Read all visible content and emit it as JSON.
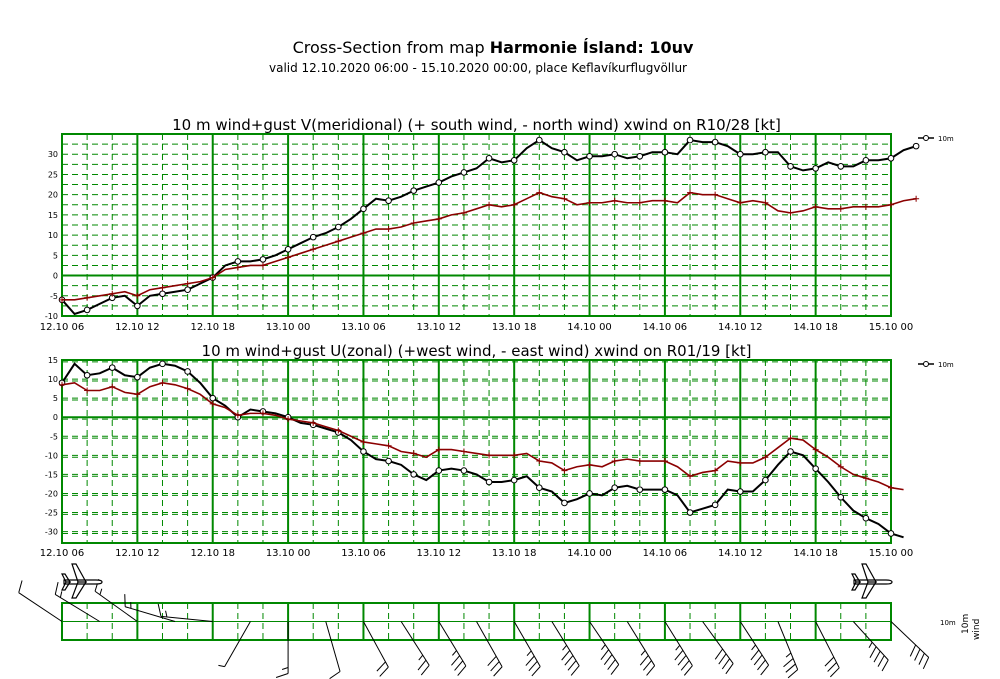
{
  "header": {
    "title_prefix": "Cross-Section from map ",
    "title_map": "Harmonie Ísland: 10uv",
    "subtitle": "valid 12.10.2020 06:00 - 15.10.2020 00:00, place Keflavíkurflugvöllur"
  },
  "colors": {
    "grid": "#008800",
    "wind": "#000000",
    "gust": "#8b0000"
  },
  "chart_data": [
    {
      "type": "line",
      "title": "10 m wind+gust V(meridional) (+ south wind, - north wind) xwind on R10/28 [kt]",
      "x_tick_labels": [
        "12.10 06",
        "12.10 12",
        "12.10 18",
        "13.10 00",
        "13.10 06",
        "13.10 12",
        "13.10 18",
        "14.10 00",
        "14.10 06",
        "14.10 12",
        "14.10 18",
        "15.10 00"
      ],
      "x_range_hours": [
        0,
        66
      ],
      "step_hours": 1,
      "ylim": [
        -10,
        35
      ],
      "y_ticks": [
        -10,
        -5,
        0,
        5,
        10,
        15,
        20,
        25,
        30
      ],
      "legend": {
        "label": "10m",
        "position": "right"
      },
      "series": [
        {
          "name": "wind",
          "values": [
            -6,
            -9.5,
            -8.5,
            -7,
            -5.5,
            -5,
            -7.5,
            -5,
            -4.5,
            -4,
            -3.5,
            -2,
            -0.5,
            2.5,
            3.5,
            3.5,
            4,
            5,
            6.5,
            8,
            9.5,
            10.5,
            12,
            14,
            16.5,
            19,
            18.5,
            19.5,
            21,
            22,
            23,
            24.5,
            25.5,
            26.5,
            29,
            28,
            28.5,
            31.5,
            33.5,
            31.5,
            30.5,
            28.5,
            29.5,
            29.5,
            30,
            29,
            29.5,
            30.5,
            30.5,
            30,
            33.5,
            33,
            33,
            32,
            30,
            30,
            30.5,
            30.5,
            27,
            26,
            26.5,
            28,
            27,
            27,
            28.5,
            28.5,
            29,
            31,
            32
          ]
        },
        {
          "name": "gust",
          "values": [
            -6,
            -6,
            -5.5,
            -5,
            -4.5,
            -4,
            -5,
            -3.5,
            -3,
            -2.5,
            -2,
            -1.5,
            -0.5,
            1.5,
            2,
            2.5,
            2.5,
            3.5,
            4.5,
            5.5,
            6.5,
            7.5,
            8.5,
            9.5,
            10.5,
            11.5,
            11.5,
            12,
            13,
            13.5,
            14,
            15,
            15.5,
            16.5,
            17.5,
            17,
            17.5,
            19,
            20.5,
            19.5,
            19,
            17.5,
            18,
            18,
            18.5,
            18,
            18,
            18.5,
            18.5,
            18,
            20.5,
            20,
            20,
            19,
            18,
            18.5,
            18,
            16,
            15.5,
            16,
            17,
            16.5,
            16.5,
            17,
            17,
            17,
            17.5,
            18.5,
            19
          ]
        }
      ]
    },
    {
      "type": "line",
      "title": "10 m wind+gust U(zonal) (+west wind, - east wind) xwind on R01/19 [kt]",
      "x_tick_labels": [
        "12.10 06",
        "12.10 12",
        "12.10 18",
        "13.10 00",
        "13.10 06",
        "13.10 12",
        "13.10 18",
        "14.10 00",
        "14.10 06",
        "14.10 12",
        "14.10 18",
        "15.10 00"
      ],
      "x_range_hours": [
        0,
        66
      ],
      "step_hours": 1,
      "ylim": [
        -33,
        15
      ],
      "y_ticks": [
        -30,
        -25,
        -20,
        -15,
        -10,
        -5,
        0,
        5,
        10,
        15
      ],
      "legend": {
        "label": "10m",
        "position": "right"
      },
      "series": [
        {
          "name": "wind",
          "values": [
            9,
            14,
            11,
            11.5,
            13,
            11,
            10.5,
            13,
            14,
            13.5,
            12,
            9,
            5,
            3,
            0,
            2,
            1.5,
            1,
            0,
            -1.5,
            -2,
            -3,
            -4,
            -6,
            -9,
            -11,
            -11.5,
            -12.5,
            -15,
            -16.5,
            -14,
            -13.5,
            -14,
            -15,
            -17,
            -17,
            -16.5,
            -15.5,
            -18.5,
            -19.5,
            -22.5,
            -21.5,
            -20,
            -20.5,
            -18.5,
            -18,
            -19,
            -19,
            -19,
            -20.5,
            -25,
            -24,
            -23,
            -19,
            -19.5,
            -19.5,
            -16.5,
            -12.5,
            -9,
            -10,
            -13.5,
            -17,
            -21,
            -24.5,
            -26.5,
            -28,
            -30.5,
            -31.5
          ]
        },
        {
          "name": "gust",
          "values": [
            8.5,
            9,
            7,
            7,
            8,
            6.5,
            6,
            8,
            9,
            8.5,
            7.5,
            6,
            3.5,
            2.5,
            0.5,
            1,
            1,
            0.5,
            -0.5,
            -1,
            -1.5,
            -2.5,
            -3.5,
            -5,
            -6.5,
            -7,
            -7.5,
            -9,
            -9.5,
            -10.5,
            -8.5,
            -8.5,
            -9,
            -9.5,
            -10,
            -10,
            -10,
            -9.5,
            -11.5,
            -12,
            -14,
            -13,
            -12.5,
            -13,
            -11.5,
            -11,
            -11.5,
            -11.5,
            -11.5,
            -13,
            -15.5,
            -14.5,
            -14,
            -11.5,
            -12,
            -12,
            -10.5,
            -8,
            -5.5,
            -6,
            -8.5,
            -10.5,
            -13,
            -15,
            -16,
            -17,
            -18.5,
            -19
          ]
        }
      ]
    }
  ],
  "barbs": {
    "label_height": "10m",
    "label_axis": "wind",
    "arrival_icon": "airplane-icon",
    "departure_icon": "airplane-icon"
  }
}
